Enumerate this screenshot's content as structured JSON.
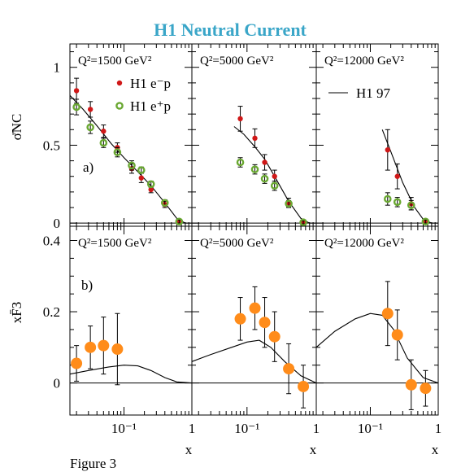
{
  "title": "H1 Neutral Current",
  "title_color": "#3aa6c8",
  "caption": "Figure 3",
  "colors": {
    "e_minus": "#d01818",
    "e_plus": "#6aa832",
    "xf3": "#ff8c1a",
    "line": "#000000"
  },
  "chart_data": [
    {
      "type": "scatter",
      "row": "top",
      "panel_label": "a)",
      "ylabel": "σ̄NC",
      "ylim": [
        -0.02,
        1.15
      ],
      "xscale": "log",
      "xlim": [
        0.016,
        1.0
      ],
      "yticks": [
        "0",
        "0.5",
        "1"
      ],
      "ytick_values": [
        0,
        0.5,
        1
      ],
      "legend": {
        "e_minus": "H1 e⁻p",
        "e_plus": "H1 e⁺p",
        "line": "H1 97"
      },
      "panels": [
        {
          "q2_label": "Q²=1500 GeV²",
          "series": [
            {
              "name": "H1 e⁻p",
              "points": [
                [
                  0.02,
                  0.85,
                  0.08
                ],
                [
                  0.032,
                  0.73,
                  0.05
                ],
                [
                  0.05,
                  0.59,
                  0.04
                ],
                [
                  0.08,
                  0.485,
                  0.03
                ],
                [
                  0.13,
                  0.35,
                  0.03
                ],
                [
                  0.18,
                  0.29,
                  0.03
                ],
                [
                  0.25,
                  0.215,
                  0.02
                ],
                [
                  0.4,
                  0.12,
                  0.02
                ],
                [
                  0.65,
                  0.01,
                  0.01
                ]
              ]
            },
            {
              "name": "H1 e⁺p",
              "points": [
                [
                  0.02,
                  0.745,
                  0.05
                ],
                [
                  0.032,
                  0.615,
                  0.04
                ],
                [
                  0.05,
                  0.515,
                  0.03
                ],
                [
                  0.08,
                  0.455,
                  0.03
                ],
                [
                  0.13,
                  0.37,
                  0.03
                ],
                [
                  0.18,
                  0.34,
                  0.02
                ],
                [
                  0.25,
                  0.25,
                  0.02
                ],
                [
                  0.4,
                  0.13,
                  0.02
                ],
                [
                  0.65,
                  0.01,
                  0.01
                ]
              ]
            }
          ],
          "curve": [
            [
              0.016,
              0.82
            ],
            [
              0.025,
              0.73
            ],
            [
              0.04,
              0.625
            ],
            [
              0.065,
              0.51
            ],
            [
              0.1,
              0.42
            ],
            [
              0.16,
              0.33
            ],
            [
              0.25,
              0.24
            ],
            [
              0.4,
              0.13
            ],
            [
              0.6,
              0.03
            ],
            [
              0.8,
              0.0
            ]
          ]
        },
        {
          "q2_label": "Q²=5000 GeV²",
          "series": [
            {
              "name": "H1 e⁻p",
              "points": [
                [
                  0.08,
                  0.67,
                  0.08
                ],
                [
                  0.13,
                  0.545,
                  0.06
                ],
                [
                  0.18,
                  0.39,
                  0.05
                ],
                [
                  0.25,
                  0.3,
                  0.04
                ],
                [
                  0.4,
                  0.13,
                  0.03
                ],
                [
                  0.65,
                  0.005,
                  0.01
                ]
              ]
            },
            {
              "name": "H1 e⁺p",
              "points": [
                [
                  0.08,
                  0.39,
                  0.03
                ],
                [
                  0.13,
                  0.345,
                  0.03
                ],
                [
                  0.18,
                  0.285,
                  0.03
                ],
                [
                  0.25,
                  0.24,
                  0.03
                ],
                [
                  0.4,
                  0.125,
                  0.02
                ],
                [
                  0.65,
                  0.005,
                  0.01
                ]
              ]
            }
          ],
          "curve": [
            [
              0.065,
              0.62
            ],
            [
              0.09,
              0.57
            ],
            [
              0.13,
              0.49
            ],
            [
              0.18,
              0.41
            ],
            [
              0.25,
              0.3
            ],
            [
              0.4,
              0.14
            ],
            [
              0.6,
              0.03
            ],
            [
              0.8,
              0.0
            ]
          ]
        },
        {
          "q2_label": "Q²=12000 GeV²",
          "series": [
            {
              "name": "H1 e⁻p",
              "points": [
                [
                  0.18,
                  0.47,
                  0.13
                ],
                [
                  0.25,
                  0.3,
                  0.08
                ],
                [
                  0.4,
                  0.125,
                  0.04
                ],
                [
                  0.65,
                  0.01,
                  0.01
                ]
              ]
            },
            {
              "name": "H1 e⁺p",
              "points": [
                [
                  0.18,
                  0.155,
                  0.04
                ],
                [
                  0.25,
                  0.135,
                  0.03
                ],
                [
                  0.4,
                  0.115,
                  0.03
                ],
                [
                  0.65,
                  0.01,
                  0.01
                ]
              ]
            }
          ],
          "curve": [
            [
              0.15,
              0.6
            ],
            [
              0.2,
              0.46
            ],
            [
              0.3,
              0.26
            ],
            [
              0.45,
              0.1
            ],
            [
              0.6,
              0.025
            ],
            [
              0.8,
              0.0
            ]
          ]
        }
      ]
    },
    {
      "type": "scatter",
      "row": "bottom",
      "panel_label": "b)",
      "ylabel": "xF̄3",
      "xlabel": "x",
      "ylim": [
        -0.09,
        0.44
      ],
      "xscale": "log",
      "xlim": [
        0.016,
        1.0
      ],
      "yticks": [
        "0",
        "0.2",
        "0.4"
      ],
      "ytick_values": [
        0,
        0.2,
        0.4
      ],
      "xticks": [
        "10⁻¹",
        "1"
      ],
      "xtick_values": [
        0.1,
        1.0
      ],
      "panels": [
        {
          "q2_label": "Q²=1500 GeV²",
          "points": [
            [
              0.02,
              0.055,
              0.05
            ],
            [
              0.032,
              0.1,
              0.06
            ],
            [
              0.05,
              0.105,
              0.08
            ],
            [
              0.08,
              0.095,
              0.1
            ]
          ],
          "curve": [
            [
              0.016,
              0.025
            ],
            [
              0.03,
              0.035
            ],
            [
              0.06,
              0.045
            ],
            [
              0.1,
              0.05
            ],
            [
              0.16,
              0.048
            ],
            [
              0.25,
              0.035
            ],
            [
              0.4,
              0.015
            ],
            [
              0.6,
              0.003
            ],
            [
              1.0,
              0.0
            ]
          ]
        },
        {
          "q2_label": "Q²=5000 GeV²",
          "points": [
            [
              0.08,
              0.18,
              0.06
            ],
            [
              0.13,
              0.21,
              0.06
            ],
            [
              0.18,
              0.17,
              0.07
            ],
            [
              0.25,
              0.13,
              0.07
            ],
            [
              0.4,
              0.04,
              0.07
            ],
            [
              0.65,
              -0.01,
              0.06
            ]
          ],
          "curve": [
            [
              0.016,
              0.06
            ],
            [
              0.03,
              0.08
            ],
            [
              0.06,
              0.1
            ],
            [
              0.1,
              0.115
            ],
            [
              0.15,
              0.12
            ],
            [
              0.22,
              0.1
            ],
            [
              0.35,
              0.06
            ],
            [
              0.6,
              0.02
            ],
            [
              1.0,
              0.0
            ]
          ]
        },
        {
          "q2_label": "Q²=12000 GeV²",
          "points": [
            [
              0.18,
              0.195,
              0.09
            ],
            [
              0.25,
              0.135,
              0.07
            ],
            [
              0.4,
              -0.005,
              0.07
            ],
            [
              0.65,
              -0.015,
              0.05
            ]
          ],
          "curve": [
            [
              0.016,
              0.1
            ],
            [
              0.03,
              0.145
            ],
            [
              0.06,
              0.18
            ],
            [
              0.1,
              0.195
            ],
            [
              0.15,
              0.19
            ],
            [
              0.22,
              0.15
            ],
            [
              0.35,
              0.07
            ],
            [
              0.6,
              0.015
            ],
            [
              1.0,
              0.0
            ]
          ]
        }
      ]
    }
  ]
}
